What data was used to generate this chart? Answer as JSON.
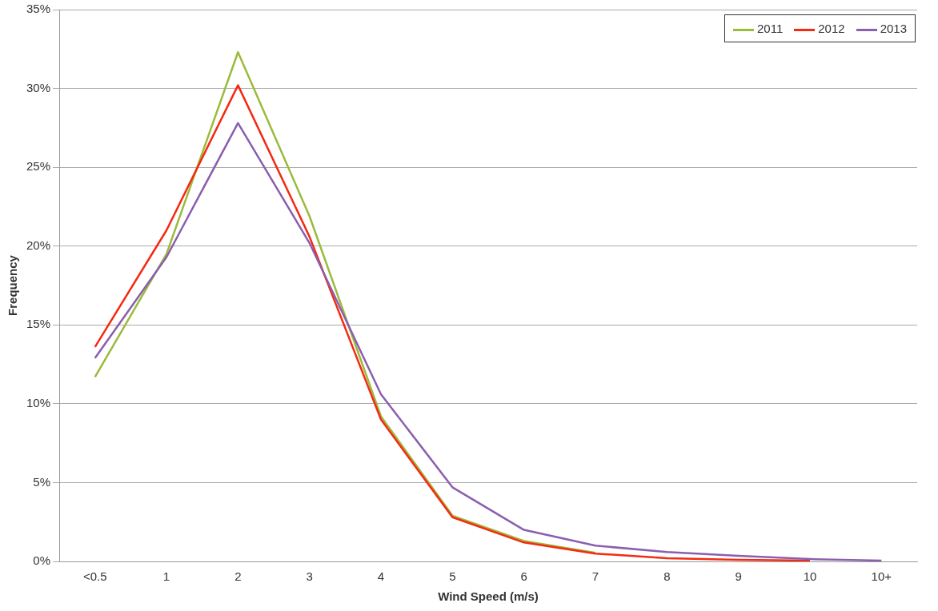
{
  "chart_data": {
    "type": "line",
    "xlabel": "Wind Speed (m/s)",
    "ylabel": "Frequency",
    "categories": [
      "<0.5",
      "1",
      "2",
      "3",
      "4",
      "5",
      "6",
      "7",
      "8",
      "9",
      "10",
      "10+"
    ],
    "series": [
      {
        "name": "2011",
        "color": "#9bbb3b",
        "values": [
          11.7,
          19.5,
          32.3,
          21.9,
          9.2,
          2.9,
          1.3,
          0.55,
          null,
          null,
          null,
          null
        ]
      },
      {
        "name": "2012",
        "color": "#f52a12",
        "values": [
          13.6,
          21.0,
          30.2,
          20.6,
          9.0,
          2.8,
          1.2,
          0.5,
          0.2,
          0.1,
          0.05,
          null
        ]
      },
      {
        "name": "2013",
        "color": "#8a5fae",
        "values": [
          12.9,
          19.3,
          27.8,
          20.2,
          10.6,
          4.7,
          2.0,
          1.0,
          0.6,
          0.35,
          0.15,
          0.05
        ]
      }
    ],
    "ylim": [
      0,
      35
    ],
    "yticks": [
      {
        "value": 0,
        "label": "0%"
      },
      {
        "value": 5,
        "label": "5%"
      },
      {
        "value": 10,
        "label": "10%"
      },
      {
        "value": 15,
        "label": "15%"
      },
      {
        "value": 20,
        "label": "20%"
      },
      {
        "value": 25,
        "label": "25%"
      },
      {
        "value": 30,
        "label": "30%"
      },
      {
        "value": 35,
        "label": "35%"
      }
    ],
    "grid": "y",
    "legend": "top right",
    "marker": "none",
    "line_style": "solid"
  }
}
